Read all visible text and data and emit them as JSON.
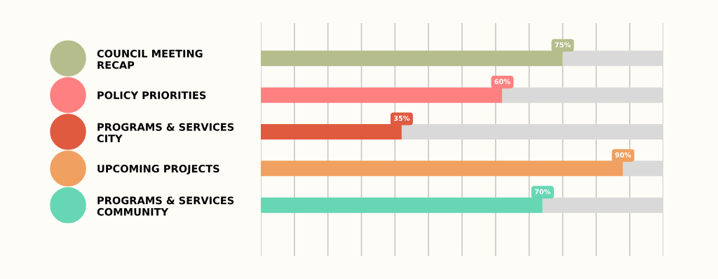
{
  "chart_data": {
    "type": "bar",
    "orientation": "horizontal",
    "stacked": true,
    "categories": [
      "COUNCIL MEETING\nRECAP",
      "POLICY PRIORITIES",
      "PROGRAMS & SERVICES\nCITY",
      "UPCOMING PROJECTS",
      "PROGRAMS & SERVICES\nCOMMUNITY"
    ],
    "series": [
      {
        "colors": [
          "#b5bd8c",
          "#ff8080",
          "#e05a40",
          "#f0a060",
          "#66d6b4"
        ],
        "values": [
          75,
          60,
          35,
          90,
          70
        ],
        "value_labels": [
          "75%",
          "60%",
          "35%",
          "90%",
          "70%"
        ]
      },
      {
        "color": "#d9d9d9",
        "values": [
          25,
          40,
          65,
          10,
          30
        ]
      }
    ],
    "xlim": [
      0,
      100
    ],
    "xticks": [
      {
        "value": 0,
        "label": null
      },
      {
        "value": 8.33,
        "label": null
      },
      {
        "value": 16.67,
        "label": null
      },
      {
        "value": 25,
        "label": null
      },
      {
        "value": 33.33,
        "label": null
      },
      {
        "value": 41.67,
        "label": null
      },
      {
        "value": 50,
        "label": null
      },
      {
        "value": 58.33,
        "label": null
      },
      {
        "value": 66.67,
        "label": null
      },
      {
        "value": 75,
        "label": null
      },
      {
        "value": 83.33,
        "label": null
      },
      {
        "value": 91.67,
        "label": null
      },
      {
        "value": 100,
        "label": null
      }
    ],
    "grid": "x",
    "tick_labels": "y"
  }
}
